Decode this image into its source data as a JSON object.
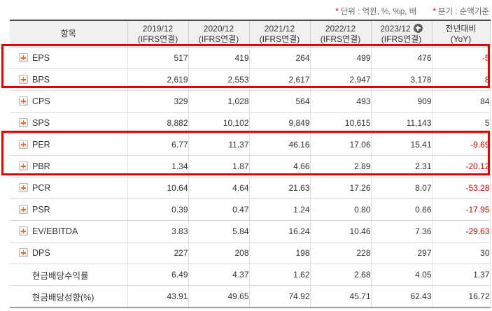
{
  "notes": {
    "star": "*",
    "unit": "단위 : 억원, %, %p, 배",
    "basis": "분기 : 순액기준"
  },
  "table": {
    "item_header": "항목",
    "columns": [
      {
        "period": "2019/12",
        "sub": "(IFRS연결)",
        "has_plus_icon": false
      },
      {
        "period": "2020/12",
        "sub": "(IFRS연결)",
        "has_plus_icon": false
      },
      {
        "period": "2021/12",
        "sub": "(IFRS연결)",
        "has_plus_icon": false
      },
      {
        "period": "2022/12",
        "sub": "(IFRS연결)",
        "has_plus_icon": false
      },
      {
        "period": "2023/12",
        "sub": "(IFRS연결)",
        "has_plus_icon": true
      },
      {
        "period": "전년대비",
        "sub": "(YoY)",
        "has_plus_icon": false
      }
    ],
    "rows": [
      {
        "label": "EPS",
        "has_icon": true,
        "values": [
          "517",
          "419",
          "264",
          "499",
          "476"
        ],
        "yoy": "-5"
      },
      {
        "label": "BPS",
        "has_icon": true,
        "values": [
          "2,619",
          "2,553",
          "2,617",
          "2,947",
          "3,178"
        ],
        "yoy": "8"
      },
      {
        "label": "CPS",
        "has_icon": true,
        "values": [
          "329",
          "1,028",
          "564",
          "493",
          "909"
        ],
        "yoy": "84"
      },
      {
        "label": "SPS",
        "has_icon": true,
        "values": [
          "8,882",
          "10,102",
          "9,849",
          "10,615",
          "11,143"
        ],
        "yoy": "5"
      },
      {
        "label": "PER",
        "has_icon": true,
        "values": [
          "6.77",
          "11.37",
          "46.16",
          "17.06",
          "15.41"
        ],
        "yoy": "-9.69"
      },
      {
        "label": "PBR",
        "has_icon": true,
        "values": [
          "1.34",
          "1.87",
          "4.66",
          "2.89",
          "2.31"
        ],
        "yoy": "-20.12"
      },
      {
        "label": "PCR",
        "has_icon": true,
        "values": [
          "10.64",
          "4.64",
          "21.63",
          "17.26",
          "8.07"
        ],
        "yoy": "-53.28"
      },
      {
        "label": "PSR",
        "has_icon": true,
        "values": [
          "0.39",
          "0.47",
          "1.24",
          "0.80",
          "0.66"
        ],
        "yoy": "-17.95"
      },
      {
        "label": "EV/EBITDA",
        "has_icon": true,
        "values": [
          "3.83",
          "5.84",
          "16.24",
          "10.46",
          "7.36"
        ],
        "yoy": "-29.63"
      },
      {
        "label": "DPS",
        "has_icon": true,
        "values": [
          "227",
          "208",
          "198",
          "228",
          "297"
        ],
        "yoy": "30"
      },
      {
        "label": "현금배당수익률",
        "has_icon": false,
        "values": [
          "6.49",
          "4.37",
          "1.62",
          "2.68",
          "4.05"
        ],
        "yoy": "1.37"
      },
      {
        "label": "현금배당성향(%)",
        "has_icon": false,
        "values": [
          "43.91",
          "49.65",
          "74.92",
          "45.71",
          "62.43"
        ],
        "yoy": "16.72"
      }
    ],
    "highlight_groups": [
      {
        "rows": [
          "EPS",
          "BPS"
        ]
      },
      {
        "rows": [
          "PER",
          "PBR"
        ]
      }
    ]
  },
  "colors": {
    "highlight_border": "#e60000",
    "negative_value": "#d80000",
    "header_bg": "#f0f0f0",
    "icon_plus_orange": "#f2671d",
    "header_circle_plus_bg": "#5e5e5e"
  }
}
